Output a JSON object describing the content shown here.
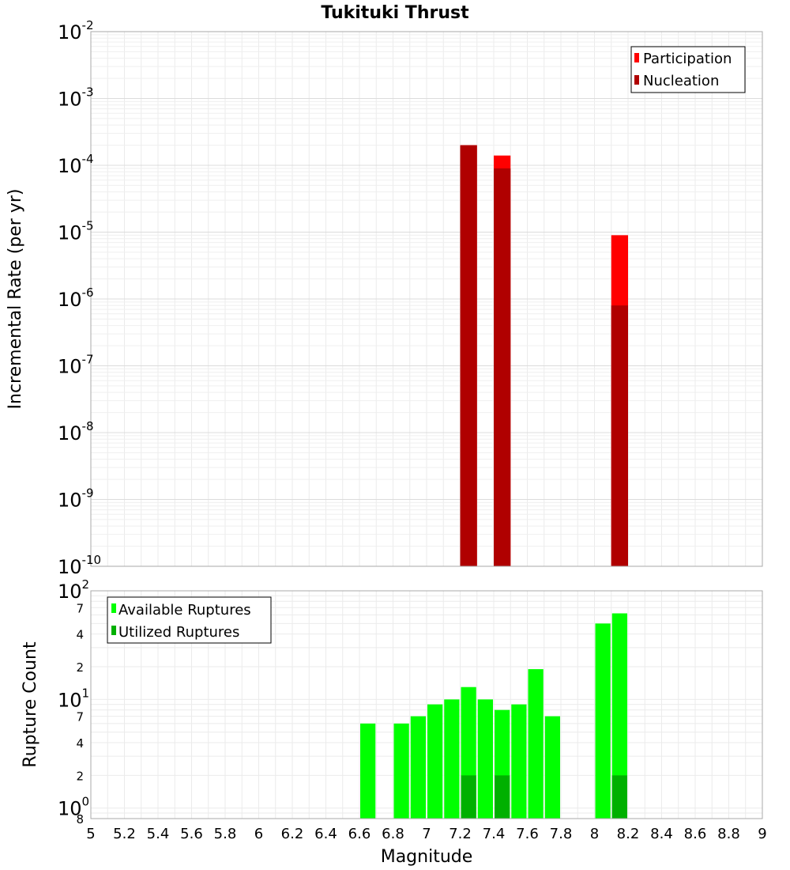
{
  "chart_data": [
    {
      "type": "bar",
      "title": "Tukituki Thrust",
      "ylabel": "Incremental Rate (per yr)",
      "xlabel": "",
      "yscale": "log",
      "ylim": [
        1e-10,
        0.01
      ],
      "xlim": [
        5,
        9
      ],
      "y_tick_exponents": [
        -2,
        -3,
        -4,
        -5,
        -6,
        -7,
        -8,
        -9,
        -10
      ],
      "grid": true,
      "legend_position": "top-right",
      "series": [
        {
          "name": "Participation",
          "color": "#ff0000",
          "x": [
            7.25,
            7.45,
            8.15
          ],
          "values": [
            0.0002,
            0.00014,
            9e-06
          ]
        },
        {
          "name": "Nucleation",
          "color": "#b00000",
          "x": [
            7.25,
            7.45,
            8.15
          ],
          "values": [
            0.0002,
            9e-05,
            8e-07
          ]
        }
      ]
    },
    {
      "type": "bar",
      "title": "",
      "ylabel": "Rupture Count",
      "xlabel": "Magnitude",
      "yscale": "log",
      "ylim": [
        0.8,
        100
      ],
      "xlim": [
        5,
        9
      ],
      "x_ticks": [
        "5",
        "5.2",
        "5.4",
        "5.6",
        "5.8",
        "6",
        "6.2",
        "6.4",
        "6.6",
        "6.8",
        "7",
        "7.2",
        "7.4",
        "7.6",
        "7.8",
        "8",
        "8.2",
        "8.4",
        "8.6",
        "8.8",
        "9"
      ],
      "y_major_ticks": [
        {
          "base": "10",
          "exp": "2"
        },
        {
          "base": "10",
          "exp": "1"
        },
        {
          "base": "10",
          "exp": "0"
        }
      ],
      "y_minor_ticks": [
        {
          "label": "7",
          "value": 70
        },
        {
          "label": "4",
          "value": 40
        },
        {
          "label": "2",
          "value": 20
        },
        {
          "label": "7",
          "value": 7
        },
        {
          "label": "4",
          "value": 4
        },
        {
          "label": "2",
          "value": 2
        },
        {
          "label": "8",
          "value": 0.8
        }
      ],
      "grid": true,
      "legend_position": "top-left",
      "series": [
        {
          "name": "Available Ruptures",
          "color": "#00ff00",
          "x": [
            6.65,
            6.85,
            6.95,
            7.05,
            7.15,
            7.25,
            7.35,
            7.45,
            7.55,
            7.65,
            7.75,
            8.05,
            8.15
          ],
          "values": [
            6,
            6,
            7,
            9,
            10,
            13,
            10,
            8,
            9,
            19,
            7,
            50,
            62
          ]
        },
        {
          "name": "Utilized Ruptures",
          "color": "#00b000",
          "x": [
            7.25,
            7.45,
            8.15
          ],
          "values": [
            2,
            2,
            2
          ]
        }
      ]
    }
  ]
}
